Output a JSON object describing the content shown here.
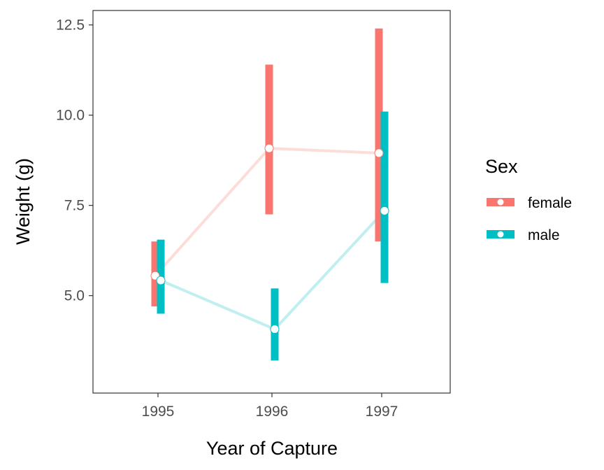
{
  "chart_data": {
    "type": "line",
    "title": "",
    "xlabel": "Year of Capture",
    "ylabel": "Weight (g)",
    "x_categories": [
      "1995",
      "1996",
      "1997"
    ],
    "y_ticks": [
      "5.0",
      "7.5",
      "10.0",
      "12.5"
    ],
    "ylim": [
      2.3,
      12.9
    ],
    "grid": false,
    "legend": {
      "title": "Sex",
      "position": "right"
    },
    "series": [
      {
        "name": "female",
        "color": "#F8766D",
        "mean": [
          5.55,
          9.08,
          8.95
        ],
        "lower": [
          4.7,
          7.25,
          6.5
        ],
        "upper": [
          6.5,
          11.4,
          12.4
        ]
      },
      {
        "name": "male",
        "color": "#00BFC4",
        "mean": [
          5.42,
          4.07,
          7.35
        ],
        "lower": [
          4.5,
          3.2,
          5.35
        ],
        "upper": [
          6.55,
          5.2,
          10.1
        ]
      }
    ]
  }
}
